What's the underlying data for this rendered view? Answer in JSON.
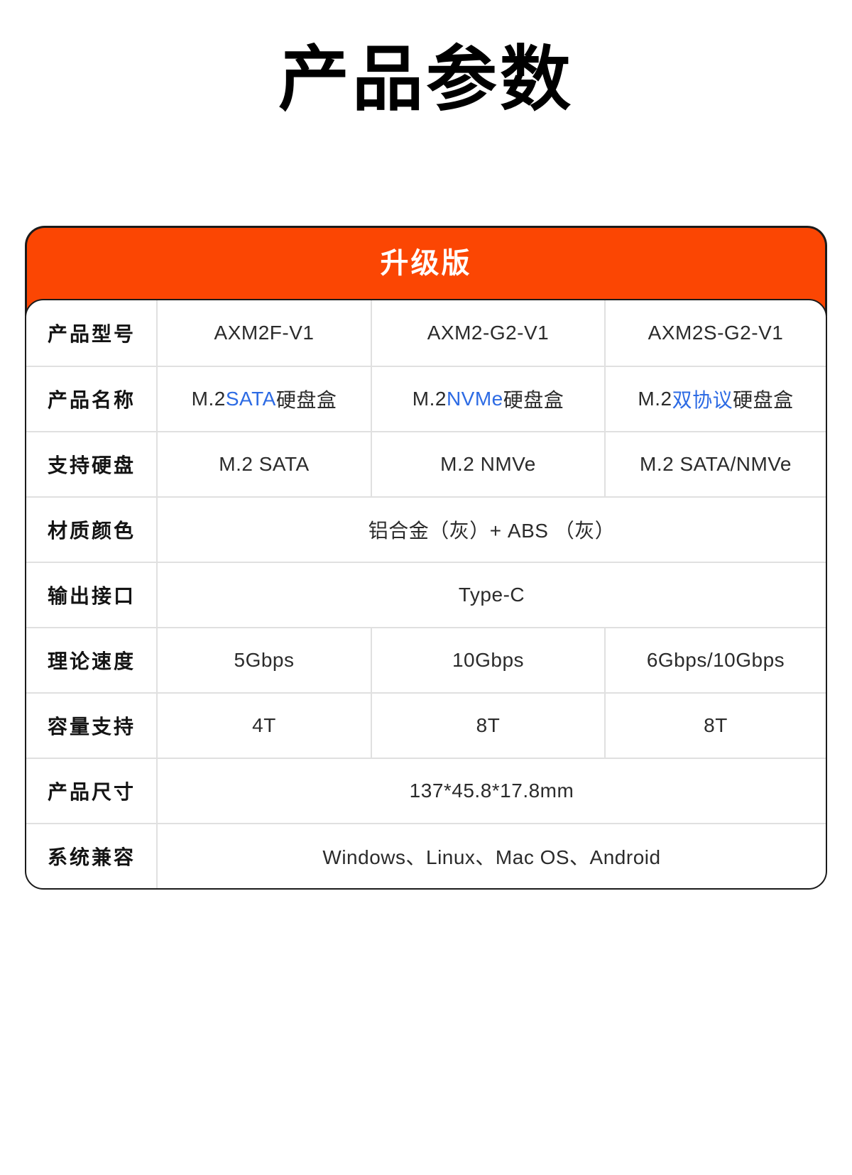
{
  "page": {
    "title": "产品参数"
  },
  "colors": {
    "accent_orange": "#FB4603",
    "accent_blue": "#2D6BE4",
    "border_dark": "#1B1B1B",
    "grid_line": "#E0E0E0"
  },
  "card": {
    "header_label": "升级版",
    "column_labels_note": "first column holds spec names, next three columns hold per-model values",
    "rows": [
      {
        "label": "产品型号",
        "cells": [
          [
            {
              "text": "AXM2F-V1"
            }
          ],
          [
            {
              "text": "AXM2-G2-V1"
            }
          ],
          [
            {
              "text": "AXM2S-G2-V1"
            }
          ]
        ]
      },
      {
        "label": "产品名称",
        "cells": [
          [
            {
              "text": "M.2 "
            },
            {
              "text": "SATA",
              "accent": true
            },
            {
              "text": "硬盘盒"
            }
          ],
          [
            {
              "text": "M.2 "
            },
            {
              "text": "NVMe",
              "accent": true
            },
            {
              "text": "硬盘盒"
            }
          ],
          [
            {
              "text": "M.2 "
            },
            {
              "text": "双协议",
              "accent": true
            },
            {
              "text": "硬盘盒"
            }
          ]
        ]
      },
      {
        "label": "支持硬盘",
        "cells": [
          [
            {
              "text": "M.2 SATA"
            }
          ],
          [
            {
              "text": "M.2 NMVe"
            }
          ],
          [
            {
              "text": "M.2 SATA/NMVe"
            }
          ]
        ]
      },
      {
        "label": "材质颜色",
        "span": "铝合金（灰）+ ABS （灰）"
      },
      {
        "label": "输出接口",
        "span": "Type-C"
      },
      {
        "label": "理论速度",
        "cells": [
          [
            {
              "text": "5Gbps"
            }
          ],
          [
            {
              "text": "10Gbps"
            }
          ],
          [
            {
              "text": "6Gbps/10Gbps"
            }
          ]
        ]
      },
      {
        "label": "容量支持",
        "cells": [
          [
            {
              "text": "4T"
            }
          ],
          [
            {
              "text": "8T"
            }
          ],
          [
            {
              "text": "8T"
            }
          ]
        ]
      },
      {
        "label": "产品尺寸",
        "span": "137*45.8*17.8mm"
      },
      {
        "label": "系统兼容",
        "span": "Windows、Linux、Mac OS、Android"
      }
    ]
  }
}
